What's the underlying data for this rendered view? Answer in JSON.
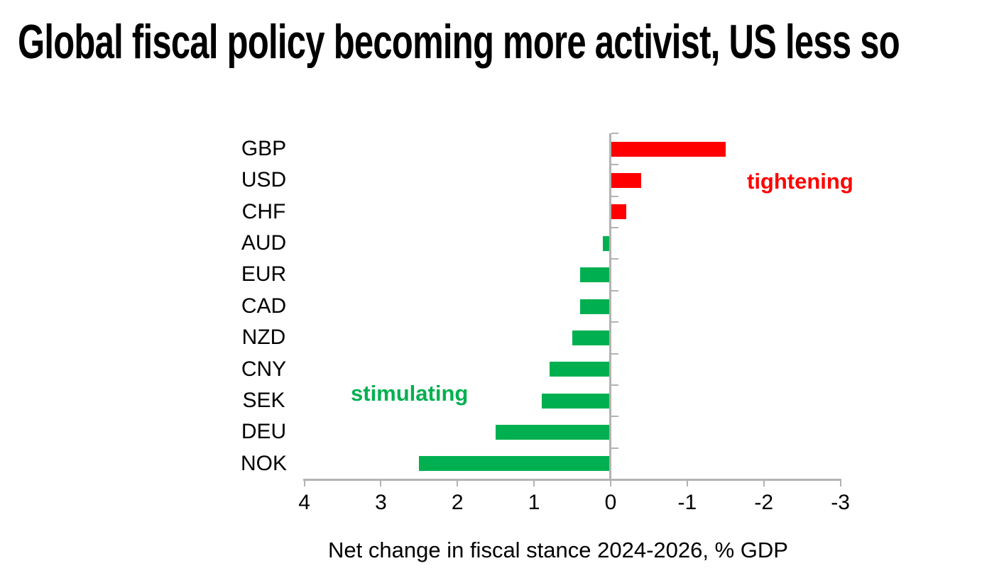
{
  "title": "Global fiscal policy becoming more activist, US less so",
  "chart_data": {
    "type": "bar",
    "orientation": "horizontal",
    "categories": [
      "GBP",
      "USD",
      "CHF",
      "AUD",
      "EUR",
      "CAD",
      "NZD",
      "CNY",
      "SEK",
      "DEU",
      "NOK"
    ],
    "values": [
      -1.5,
      -0.4,
      -0.2,
      0.1,
      0.4,
      0.4,
      0.5,
      0.8,
      0.9,
      1.5,
      2.5
    ],
    "xlabel": "Net change in fiscal stance 2024-2026, % GDP",
    "x_tick_labels": [
      "4",
      "3",
      "2",
      "1",
      "0",
      "-1",
      "-2",
      "-3"
    ],
    "xlim": [
      4,
      -3
    ],
    "x_axis_reversed": true,
    "grid": false,
    "legend": "none",
    "positive_color": "#00b050",
    "negative_color": "#ff0000",
    "axis_color": "#b3b3b3",
    "annotations": [
      {
        "text": "tightening",
        "color": "#ff0000",
        "meaning": "negative values side"
      },
      {
        "text": "stimulating",
        "color": "#00b050",
        "meaning": "positive values side"
      }
    ]
  }
}
